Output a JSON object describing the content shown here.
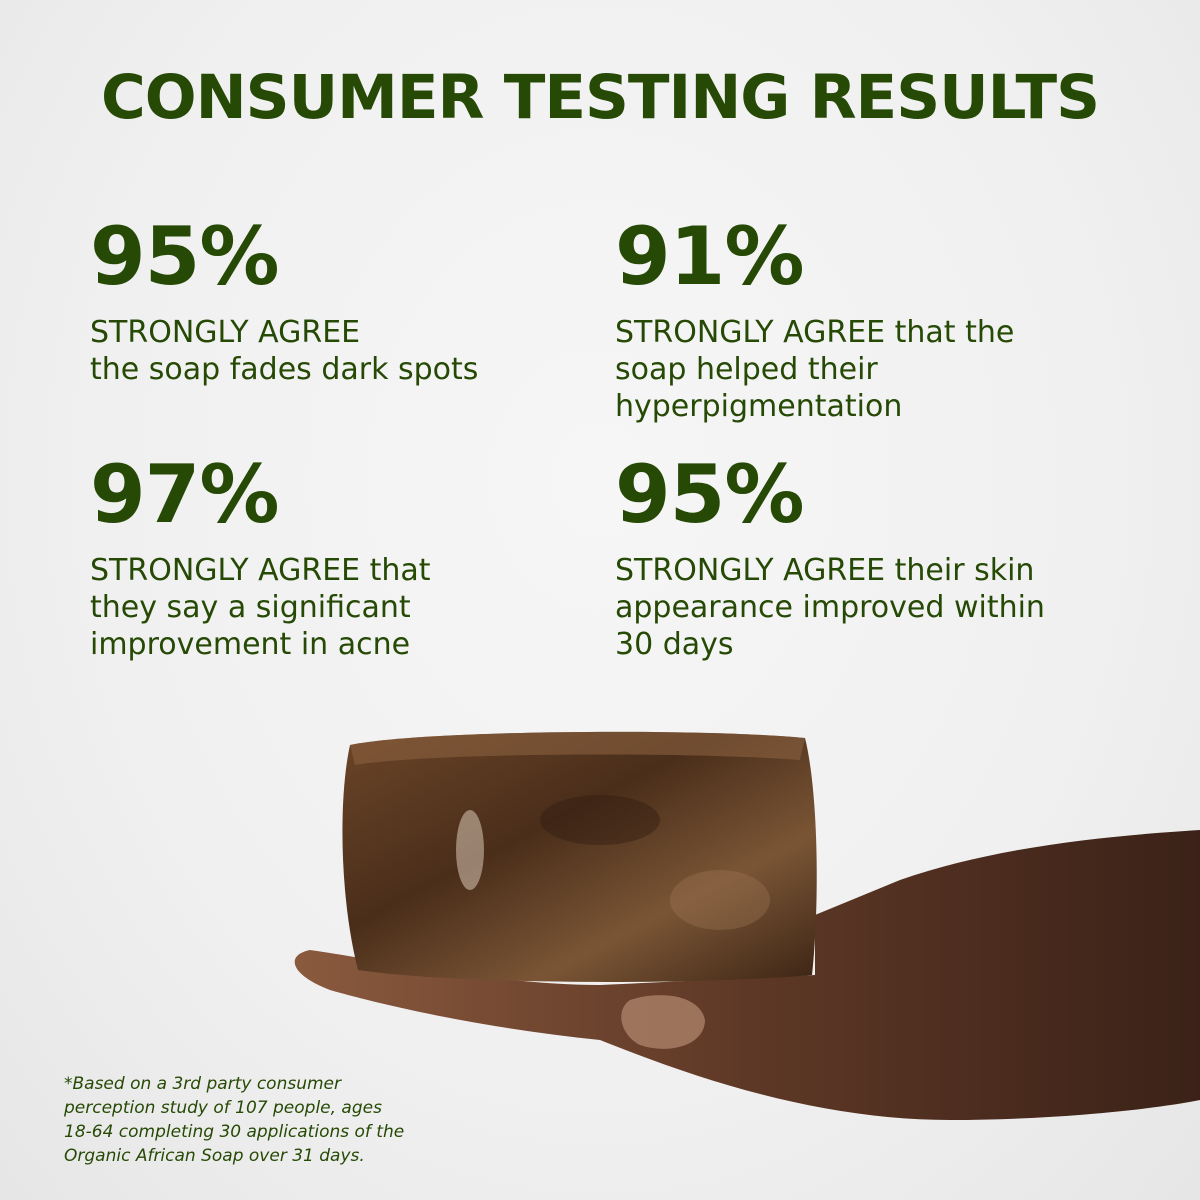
{
  "title": "CONSUMER TESTING RESULTS",
  "stats": [
    {
      "value": "95%",
      "lines": [
        "STRONGLY AGREE",
        "the soap fades dark spots"
      ]
    },
    {
      "value": "91%",
      "lines": [
        "STRONGLY AGREE that the",
        "soap helped their",
        "hyperpigmentation"
      ]
    },
    {
      "value": "97%",
      "lines": [
        "STRONGLY AGREE that",
        "they say a significant",
        "improvement in acne"
      ]
    },
    {
      "value": "95%",
      "lines": [
        "STRONGLY AGREE their skin",
        "appearance improved within",
        "30 days"
      ]
    }
  ],
  "footnote": [
    "*Based on a 3rd party consumer",
    "perception study of 107 people, ages",
    "18-64 completing 30 applications of the",
    "Organic African Soap over 31 days."
  ],
  "colors": {
    "brand_green": "#264a05",
    "background": "#f2f2f2"
  }
}
